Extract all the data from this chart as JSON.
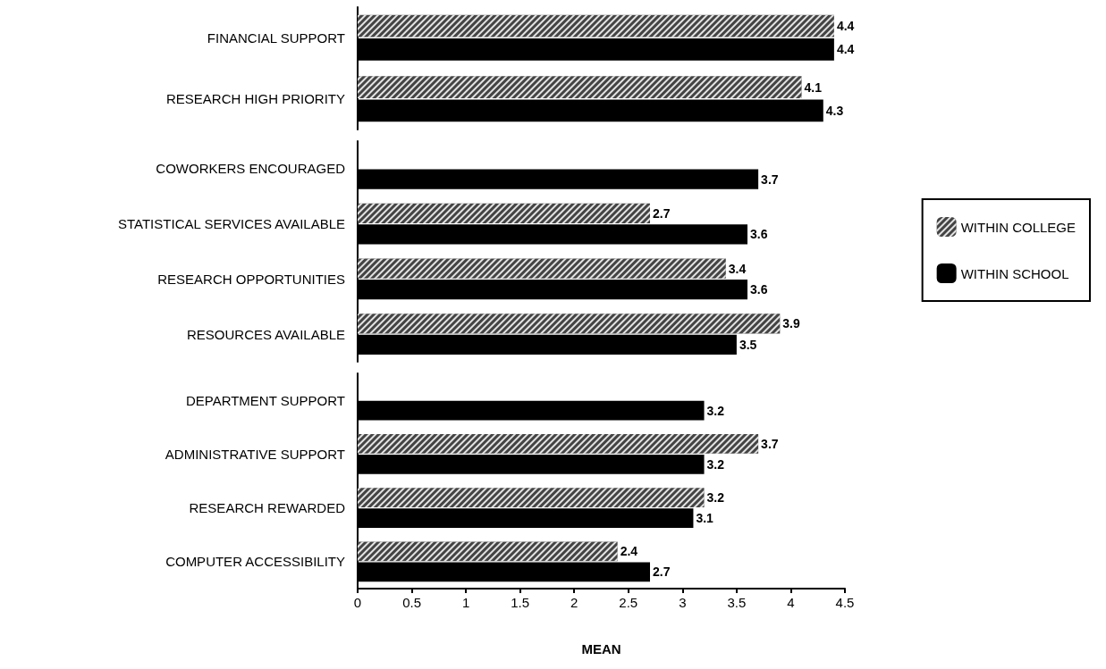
{
  "chart_data": [
    {
      "type": "bar",
      "orientation": "horizontal",
      "categories": [
        "FINANCIAL SUPPORT",
        "RESEARCH HIGH PRIORITY"
      ],
      "series": [
        {
          "color": "#444444",
          "values": [
            4.4,
            4.1
          ]
        },
        {
          "color": "#000000",
          "values": [
            4.4,
            4.3
          ]
        }
      ],
      "xlim": [
        0,
        4.5
      ],
      "xticks": [
        0,
        0.5,
        1,
        1.5,
        2,
        2.5,
        3,
        3.5,
        4,
        4.5
      ],
      "tick_labels": "y",
      "data_labels": true
    },
    {
      "type": "bar",
      "orientation": "horizontal",
      "categories": [
        "COWORKERS ENCOURAGED",
        "STATISTICAL SERVICES AVAILABLE",
        "RESEARCH OPPORTUNITIES",
        "RESOURCES AVAILABLE"
      ],
      "series": [
        {
          "name": "WITHIN COLLEGE",
          "color": "#444444",
          "values": [
            null,
            2.7,
            3.4,
            3.9
          ]
        },
        {
          "name": "WITHIN SCHOOL",
          "color": "#000000",
          "values": [
            3.7,
            3.6,
            3.6,
            3.5
          ]
        }
      ],
      "xlim": [
        0,
        4.5
      ],
      "xticks": [
        0,
        0.5,
        1,
        1.5,
        2,
        2.5,
        3,
        3.5,
        4,
        4.5
      ],
      "tick_labels": "y",
      "data_labels": true,
      "legend": "right"
    },
    {
      "type": "bar",
      "orientation": "horizontal",
      "categories": [
        "DEPARTMENT SUPPORT",
        "ADMINISTRATIVE SUPPORT",
        "RESEARCH REWARDED",
        "COMPUTER ACCESSIBILITY"
      ],
      "series": [
        {
          "color": "#444444",
          "values": [
            null,
            3.7,
            3.2,
            2.4
          ]
        },
        {
          "color": "#000000",
          "values": [
            3.2,
            3.2,
            3.1,
            2.7
          ]
        }
      ],
      "xlim": [
        0,
        4.5
      ],
      "xticks": [
        0,
        0.5,
        1,
        1.5,
        2,
        2.5,
        3,
        3.5,
        4,
        4.5
      ],
      "xlabel": "MEAN",
      "data_labels": true
    }
  ]
}
